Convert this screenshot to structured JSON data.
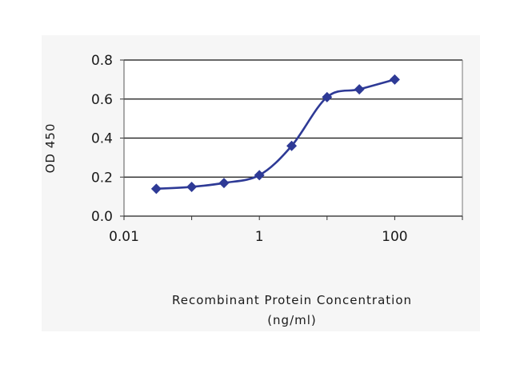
{
  "chart_data": {
    "type": "line",
    "title": "",
    "xlabel": "Recombinant Protein Concentration",
    "xlabel_unit": "(ng/ml)",
    "ylabel": "OD 450",
    "x_scale": "log",
    "xlim": [
      0.01,
      1000
    ],
    "ylim": [
      0,
      0.8
    ],
    "x_ticks": [
      0.01,
      1,
      100
    ],
    "x_tick_labels": [
      "0.01",
      "1",
      "100"
    ],
    "y_ticks": [
      0,
      0.2,
      0.4,
      0.6,
      0.8
    ],
    "y_tick_labels": [
      "0.0",
      "0.2",
      "0.4",
      "0.6",
      "0.8"
    ],
    "grid": "horizontal",
    "legend": "none",
    "series": [
      {
        "x": [
          0.03,
          0.1,
          0.3,
          1,
          3,
          10,
          30,
          100
        ],
        "y": [
          0.14,
          0.15,
          0.17,
          0.21,
          0.36,
          0.61,
          0.65,
          0.7
        ]
      }
    ],
    "colors": {
      "series": "#2e3a96",
      "grid": "#111111",
      "plot_bg": "#ffffff",
      "panel_bg": "#f6f6f6"
    }
  }
}
